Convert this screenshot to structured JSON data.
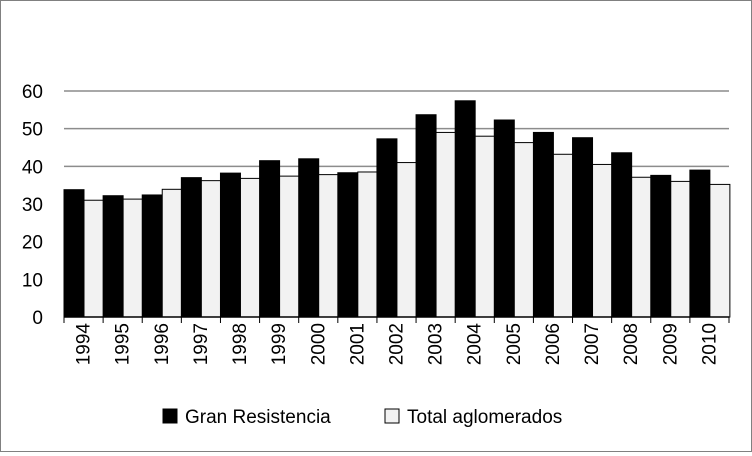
{
  "chart_data": {
    "type": "bar",
    "categories": [
      "1994",
      "1995",
      "1996",
      "1997",
      "1998",
      "1999",
      "2000",
      "2001",
      "2002",
      "2003",
      "2004",
      "2005",
      "2006",
      "2007",
      "2008",
      "2009",
      "2010"
    ],
    "series": [
      {
        "name": "Gran Resistencia",
        "color": "#000000",
        "values": [
          33.8,
          32.2,
          32.4,
          37.0,
          38.2,
          41.5,
          42.0,
          38.3,
          47.3,
          53.7,
          57.4,
          52.3,
          49.0,
          47.6,
          43.6,
          37.6,
          39.0
        ]
      },
      {
        "name": "Total aglomerados",
        "color": "#f2f2f2",
        "values": [
          31.0,
          31.3,
          33.9,
          36.2,
          36.8,
          37.4,
          37.8,
          38.5,
          41.0,
          49.0,
          48.0,
          46.3,
          43.2,
          40.5,
          37.1,
          36.0,
          35.2
        ]
      }
    ],
    "yticks": [
      "0",
      "10",
      "20",
      "30",
      "40",
      "50",
      "60"
    ],
    "ylim": [
      0,
      60
    ],
    "grid": true,
    "legend_position": "bottom"
  }
}
